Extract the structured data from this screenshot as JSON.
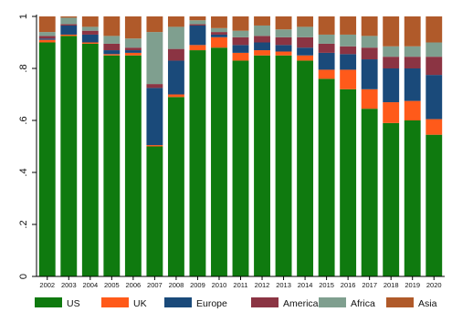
{
  "chart_data": {
    "type": "bar",
    "stacked": true,
    "categories": [
      "2002",
      "2003",
      "2004",
      "2005",
      "2006",
      "2007",
      "2008",
      "2009",
      "2010",
      "2011",
      "2012",
      "2013",
      "2014",
      "2015",
      "2016",
      "2017",
      "2018",
      "2019",
      "2020"
    ],
    "ylim": [
      0,
      1
    ],
    "yticks": [
      0,
      0.2,
      0.4,
      0.6,
      0.8,
      1.0
    ],
    "ytick_labels": [
      "0",
      ".2",
      ".4",
      ".6",
      ".8",
      "1"
    ],
    "grid": false,
    "legend_position": "bottom",
    "series": [
      {
        "name": "US",
        "color": "#0f7a0f",
        "values": [
          0.9,
          0.925,
          0.895,
          0.85,
          0.85,
          0.5,
          0.69,
          0.87,
          0.88,
          0.83,
          0.85,
          0.85,
          0.83,
          0.76,
          0.72,
          0.645,
          0.59,
          0.6,
          0.545
        ]
      },
      {
        "name": "UK",
        "color": "#ff5a1a",
        "values": [
          0.01,
          0.005,
          0.005,
          0.005,
          0.01,
          0.005,
          0.01,
          0.02,
          0.04,
          0.03,
          0.02,
          0.015,
          0.02,
          0.035,
          0.075,
          0.075,
          0.08,
          0.075,
          0.06
        ]
      },
      {
        "name": "Europe",
        "color": "#1a4a7a",
        "values": [
          0.005,
          0.035,
          0.03,
          0.015,
          0.01,
          0.22,
          0.13,
          0.075,
          0.01,
          0.03,
          0.03,
          0.025,
          0.03,
          0.065,
          0.06,
          0.115,
          0.13,
          0.125,
          0.17
        ]
      },
      {
        "name": "Americas",
        "color": "#8b3443",
        "values": [
          0.01,
          0.005,
          0.015,
          0.025,
          0.01,
          0.015,
          0.045,
          0.005,
          0.01,
          0.03,
          0.025,
          0.03,
          0.04,
          0.035,
          0.03,
          0.045,
          0.045,
          0.045,
          0.07
        ]
      },
      {
        "name": "Africa",
        "color": "#7f9f8f",
        "values": [
          0.015,
          0.025,
          0.015,
          0.03,
          0.035,
          0.2,
          0.085,
          0.015,
          0.015,
          0.025,
          0.04,
          0.03,
          0.04,
          0.035,
          0.045,
          0.045,
          0.04,
          0.04,
          0.055
        ]
      },
      {
        "name": "Asia",
        "color": "#b05a2a",
        "values": [
          0.06,
          0.005,
          0.04,
          0.075,
          0.085,
          0.06,
          0.04,
          0.015,
          0.045,
          0.055,
          0.035,
          0.05,
          0.04,
          0.07,
          0.07,
          0.075,
          0.115,
          0.115,
          0.1
        ]
      }
    ]
  }
}
